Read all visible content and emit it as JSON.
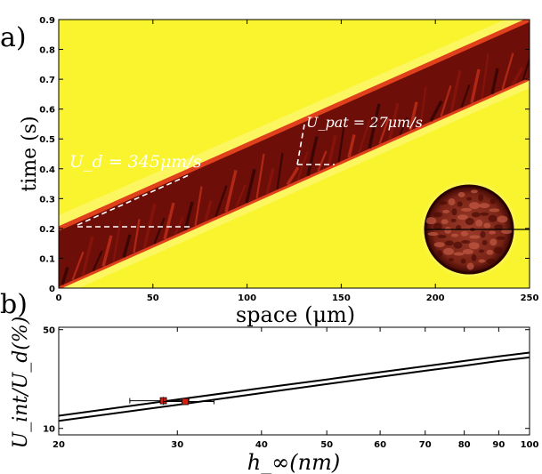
{
  "panel_a": {
    "panel_label": "a)",
    "ylabel": "time (s)",
    "xlabel": "space (μm)",
    "annotation_ud": "U_d = 345μm/s",
    "annotation_upat": "U_pat = 27μm/s"
  },
  "panel_b": {
    "panel_label": "b)",
    "ylabel": "U_int/U_d(%)",
    "xlabel": "h_∞(nm)"
  },
  "colors": {
    "background_yellow": "#f9f42e",
    "band_dark": "#5a0a06",
    "band_red": "#c0210f",
    "annotation": "#ffffff",
    "data_marker": "#d31f10"
  },
  "chart_data": [
    {
      "type": "heatmap",
      "x_ticks": [
        "0",
        "50",
        "100",
        "150",
        "200",
        "250"
      ],
      "y_ticks": [
        "0",
        "0.1",
        "0.2",
        "0.3",
        "0.4",
        "0.5",
        "0.6",
        "0.7",
        "0.8",
        "0.9"
      ],
      "xlim": [
        0,
        250
      ],
      "ylim": [
        0,
        0.9
      ],
      "band_lower_edge": [
        [
          0,
          0.0
        ],
        [
          250,
          0.7
        ]
      ],
      "band_upper_edge": [
        [
          0,
          0.2
        ],
        [
          250,
          0.9
        ]
      ],
      "ud_line": [
        [
          10,
          0.21
        ],
        [
          68,
          0.37
        ]
      ],
      "upat_line": [
        [
          124,
          0.42
        ],
        [
          130,
          0.55
        ]
      ],
      "inset": "circular-domain-image"
    },
    {
      "type": "line",
      "xscale": "log",
      "yscale": "log",
      "xlim": [
        20,
        100
      ],
      "ylim": [
        9,
        52
      ],
      "x_ticks": [
        "20",
        "30",
        "40",
        "50",
        "60",
        "70",
        "80",
        "90",
        "100"
      ],
      "y_ticks": [
        "10",
        "50"
      ],
      "series": [
        {
          "x": [
            20,
            30,
            40,
            50,
            60,
            70,
            80,
            90,
            100
          ],
          "y": [
            12.3,
            16.0,
            19.3,
            22.2,
            25.0,
            27.6,
            30.0,
            32.3,
            34.4
          ]
        },
        {
          "x": [
            20,
            30,
            40,
            50,
            60,
            70,
            80,
            90,
            100
          ],
          "y": [
            11.3,
            14.7,
            17.8,
            20.6,
            23.2,
            25.6,
            27.8,
            30.0,
            31.8
          ]
        }
      ],
      "points": [
        {
          "x": 28.6,
          "y": 15.7,
          "xerr": [
            25.5,
            31.2
          ],
          "yerr": [
            14.7,
            16.7
          ]
        },
        {
          "x": 30.8,
          "y": 15.5,
          "xerr": [
            28.6,
            34.0
          ],
          "yerr": [
            14.8,
            16.3
          ]
        }
      ]
    }
  ]
}
